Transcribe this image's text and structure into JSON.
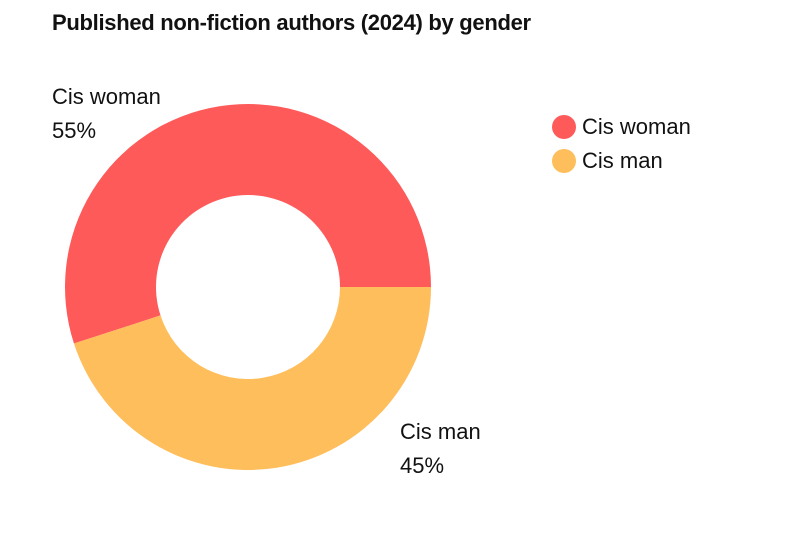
{
  "chart_data": {
    "type": "pie",
    "title": "Published non-fiction authors (2024) by gender",
    "donut": true,
    "legend_position": "top-right",
    "slices": [
      {
        "label": "Cis woman",
        "value": 55,
        "value_label": "55%",
        "color": "#FF5A5A"
      },
      {
        "label": "Cis man",
        "value": 45,
        "value_label": "45%",
        "color": "#FEBE5C"
      }
    ]
  }
}
